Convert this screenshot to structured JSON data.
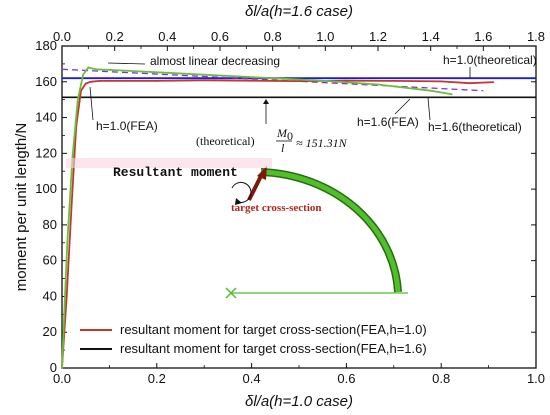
{
  "chart_data": {
    "type": "line",
    "xlabel_bottom": "δl/a(h=1.0 case)",
    "xlabel_top": "δl/a(h=1.6 case)",
    "ylabel": "moment per unit length/N",
    "xlim_bottom": [
      0,
      1.0
    ],
    "xlim_top": [
      0,
      1.8
    ],
    "ylim": [
      0,
      180
    ],
    "xticks_bottom": [
      "0.0",
      "0.2",
      "0.4",
      "0.6",
      "0.8",
      "1.0"
    ],
    "xticks_top": [
      "0.0",
      "0.2",
      "0.4",
      "0.6",
      "0.8",
      "1.0",
      "1.2",
      "1.4",
      "1.6",
      "1.8"
    ],
    "yticks": [
      "0",
      "20",
      "40",
      "60",
      "80",
      "100",
      "120",
      "140",
      "160",
      "180"
    ],
    "legend_position": "bottom-left",
    "colors": {
      "red": "#c0392b",
      "black": "#111111",
      "green": "#6abf3a",
      "blue": "#1a1ad8",
      "purple": "#8a2be2",
      "arrow": "#7a1a0a"
    },
    "series": [
      {
        "name": "resultant moment for target cross-section(FEA,h=1.0)",
        "color": "#c0392b",
        "axis": "bottom",
        "x": [
          0.0,
          0.01,
          0.02,
          0.03,
          0.04,
          0.05,
          0.06,
          0.08,
          0.1,
          0.2,
          0.3,
          0.4,
          0.5,
          0.6,
          0.7,
          0.8,
          0.86,
          0.91
        ],
        "y": [
          0,
          40,
          90,
          135,
          155,
          159,
          160,
          160.5,
          160.5,
          160.5,
          160.8,
          160.6,
          160.4,
          160.6,
          160.5,
          160.2,
          159.2,
          159.8
        ]
      },
      {
        "name": "resultant moment for target cross-section(FEA,h=1.6)",
        "color": "#6abf3a",
        "axis": "top",
        "x": [
          0.0,
          0.01,
          0.02,
          0.04,
          0.06,
          0.08,
          0.1,
          0.13,
          0.2,
          0.4,
          0.6,
          0.8,
          1.0,
          1.2,
          1.4,
          1.48
        ],
        "y": [
          0,
          35,
          70,
          118,
          150,
          164,
          168,
          167,
          166.5,
          165,
          163.5,
          162,
          160.5,
          158.5,
          155,
          153
        ]
      }
    ],
    "reference_lines": [
      {
        "label": "h=1.0(theoretical)",
        "y": 162,
        "color": "#1a1ad8"
      },
      {
        "label": "h=1.6(theoretical)",
        "axis": "top",
        "x": [
          0.0,
          1.6
        ],
        "y": [
          167,
          155
        ],
        "color": "#8a2be2",
        "style": "dashed"
      },
      {
        "label": "(theoretical) M0/l ≈ 151.31N",
        "y": 151.31,
        "color": "#111111"
      }
    ],
    "annotations": [
      "almost linear decreasing",
      "h=1.0(theoretical)",
      "h=1.0(FEA)",
      "h=1.6(FEA)",
      "h=1.6(theoretical)",
      "Resultant moment",
      "target cross-section"
    ],
    "formula": {
      "prefix": "(theoretical)",
      "numerator": "M",
      "numerator_sub": "0",
      "denominator": "l",
      "suffix": "≈ 151.31N"
    }
  }
}
